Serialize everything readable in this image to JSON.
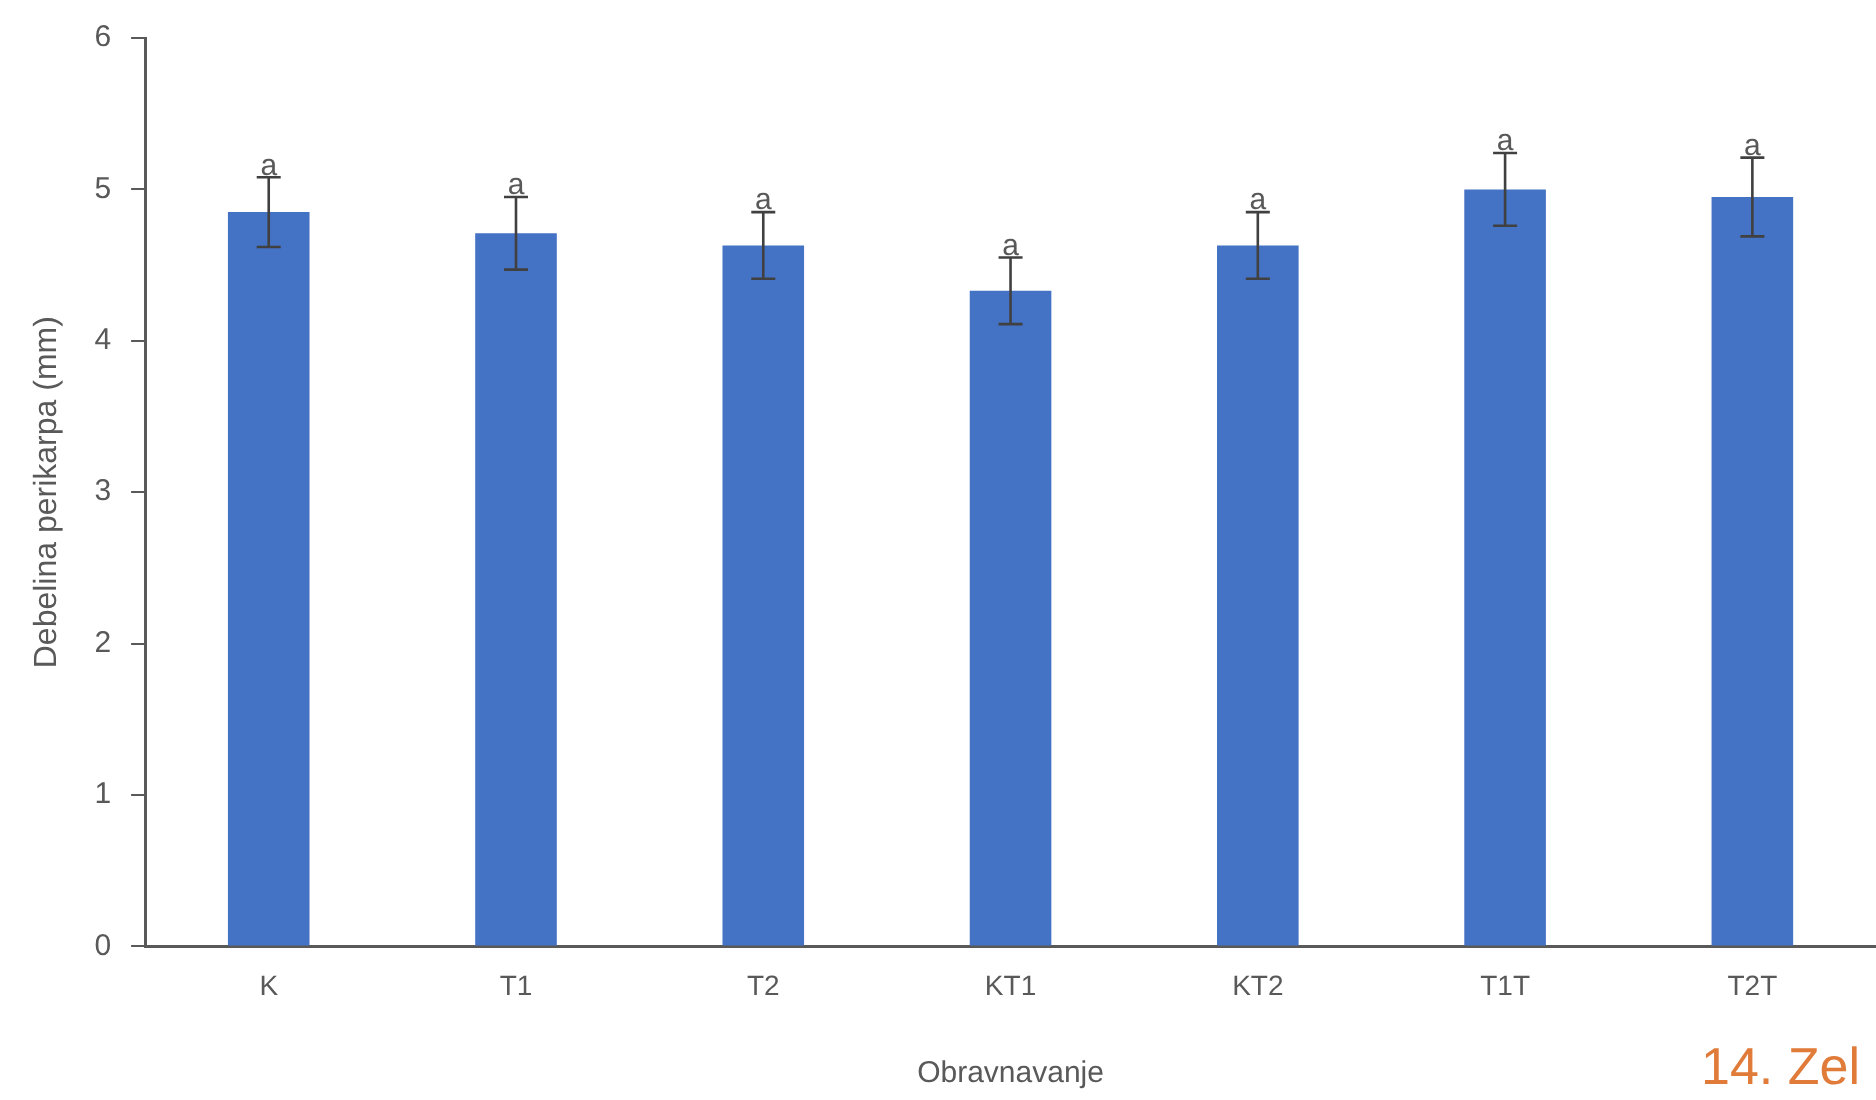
{
  "chart_data": {
    "type": "bar",
    "xlabel": "Obravnavanje",
    "ylabel": "Debelina perikarpa (mm)",
    "categories": [
      "K",
      "T1",
      "T2",
      "KT1",
      "KT2",
      "T1T",
      "T2T"
    ],
    "values": [
      4.85,
      4.71,
      4.63,
      4.33,
      4.63,
      5.0,
      4.95
    ],
    "errors": [
      0.23,
      0.24,
      0.22,
      0.22,
      0.22,
      0.24,
      0.26
    ],
    "color": "#4472c4",
    "ylim": [
      0,
      6
    ],
    "yticks": [
      0,
      1,
      2,
      3,
      4,
      5,
      6
    ],
    "grid": false,
    "legend": false,
    "annotations": [
      {
        "text": "a",
        "x": "K",
        "y": 5.08
      },
      {
        "text": "a",
        "x": "T1",
        "y": 4.95
      },
      {
        "text": "a",
        "x": "T2",
        "y": 4.85
      },
      {
        "text": "a",
        "x": "KT1",
        "y": 4.55
      },
      {
        "text": "a",
        "x": "KT2",
        "y": 4.85
      },
      {
        "text": "a",
        "x": "T1T",
        "y": 5.24
      },
      {
        "text": "a",
        "x": "T2T",
        "y": 5.21
      },
      "14. Zel"
    ]
  }
}
